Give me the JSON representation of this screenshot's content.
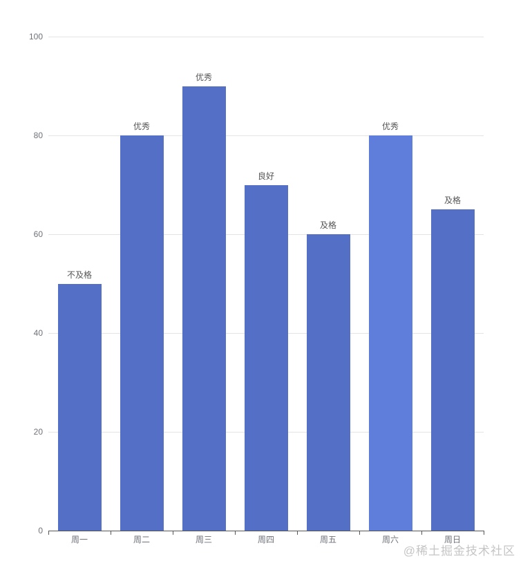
{
  "chart_data": {
    "type": "bar",
    "categories": [
      "周一",
      "周二",
      "周三",
      "周四",
      "周五",
      "周六",
      "周日"
    ],
    "values": [
      50,
      80,
      90,
      70,
      60,
      80,
      65
    ],
    "bar_labels": [
      "不及格",
      "优秀",
      "优秀",
      "良好",
      "及格",
      "优秀",
      "及格"
    ],
    "yticks": [
      0,
      20,
      40,
      60,
      80,
      100
    ],
    "ylim": [
      0,
      100
    ],
    "grid": true,
    "legend": "none",
    "bar_color": "#5470c6",
    "highlight_color": "#5f7dda",
    "highlight_index": 5,
    "axis_color": "#555555",
    "gridline_color": "#e3e3e3",
    "axis_label_color": "#6e7079",
    "bar_label_color": "#555555"
  },
  "watermark": {
    "text": "@稀土掘金技术社区",
    "color": "#c5c5c5"
  }
}
